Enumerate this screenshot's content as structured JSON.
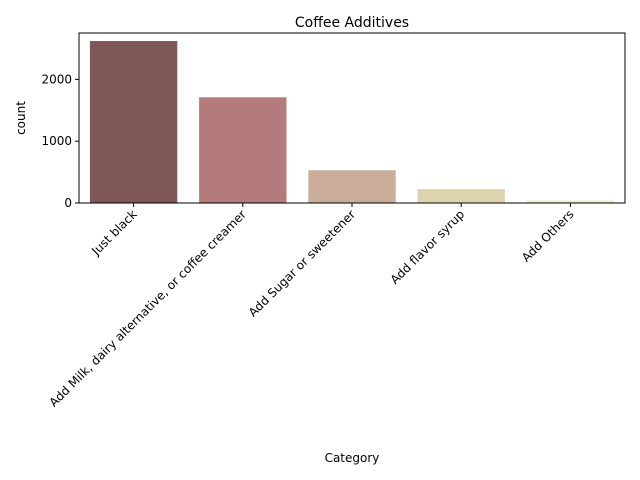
{
  "chart_data": {
    "type": "bar",
    "title": "Coffee Additives",
    "xlabel": "Category",
    "ylabel": "count",
    "categories": [
      "Just black",
      "Add Milk, dairy alternative, or coffee creamer",
      "Add Sugar or sweetener",
      "Add flavor syrup",
      "Add Others"
    ],
    "values": [
      2620,
      1710,
      530,
      225,
      40
    ],
    "yticks": [
      0,
      1000,
      2000
    ],
    "ylim": [
      0,
      2750
    ],
    "colors": [
      "#7f5757",
      "#b37b7b",
      "#c9ad98",
      "#ddd3ac",
      "#ebebc9"
    ],
    "grid": false,
    "legend": "none"
  }
}
